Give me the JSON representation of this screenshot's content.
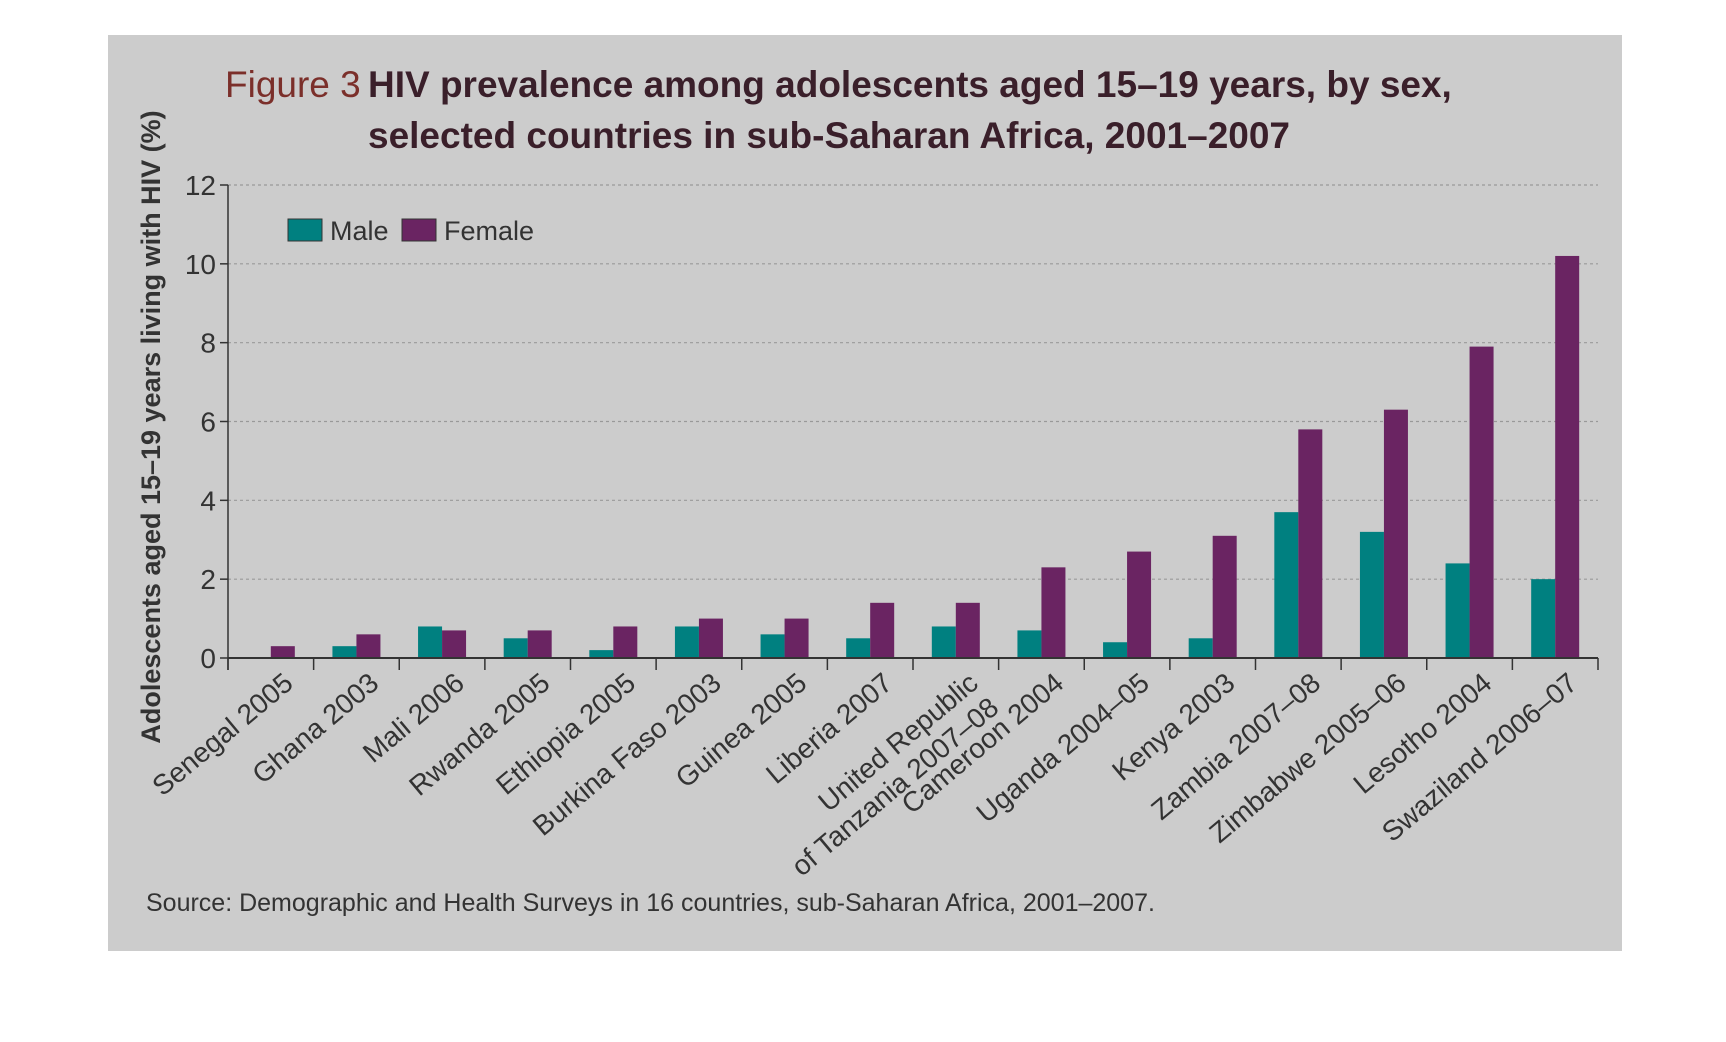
{
  "chart_data": {
    "type": "bar",
    "figure_label": "Figure 3",
    "title_line1": "HIV prevalence among adolescents aged 15–19 years, by sex,",
    "title_line2": "selected countries in sub-Saharan Africa, 2001–2007",
    "ylabel": "Adolescents aged 15–19 years living with HIV (%)",
    "xlabel": "",
    "ylim": [
      0,
      12
    ],
    "yticks": [
      0,
      2,
      4,
      6,
      8,
      10,
      12
    ],
    "grid": true,
    "legend_placement": "top-left",
    "categories": [
      "Senegal 2005",
      "Ghana 2003",
      "Mali 2006",
      "Rwanda 2005",
      "Ethiopia 2005",
      "Burkina Faso 2003",
      "Guinea 2005",
      "Liberia 2007",
      "United Republic|of Tanzania 2007–08",
      "Cameroon 2004",
      "Uganda 2004–05",
      "Kenya 2003",
      "Zambia 2007–08",
      "Zimbabwe 2005–06",
      "Lesotho 2004",
      "Swaziland 2006–07"
    ],
    "series": [
      {
        "name": "Male",
        "color": "#008080",
        "values": [
          0.0,
          0.3,
          0.8,
          0.5,
          0.2,
          0.8,
          0.6,
          0.5,
          0.8,
          0.7,
          0.4,
          0.5,
          3.7,
          3.2,
          2.4,
          2.0
        ]
      },
      {
        "name": "Female",
        "color": "#6a2462",
        "values": [
          0.3,
          0.6,
          0.7,
          0.7,
          0.8,
          1.0,
          1.0,
          1.4,
          1.4,
          2.3,
          2.7,
          3.1,
          5.8,
          6.3,
          7.9,
          10.2
        ]
      }
    ],
    "source": "Source: Demographic and Health Surveys in 16 countries, sub-Saharan Africa, 2001–2007."
  },
  "colors": {
    "panel_background": "#cccccc",
    "grid": "#999999",
    "axis": "#333333"
  }
}
